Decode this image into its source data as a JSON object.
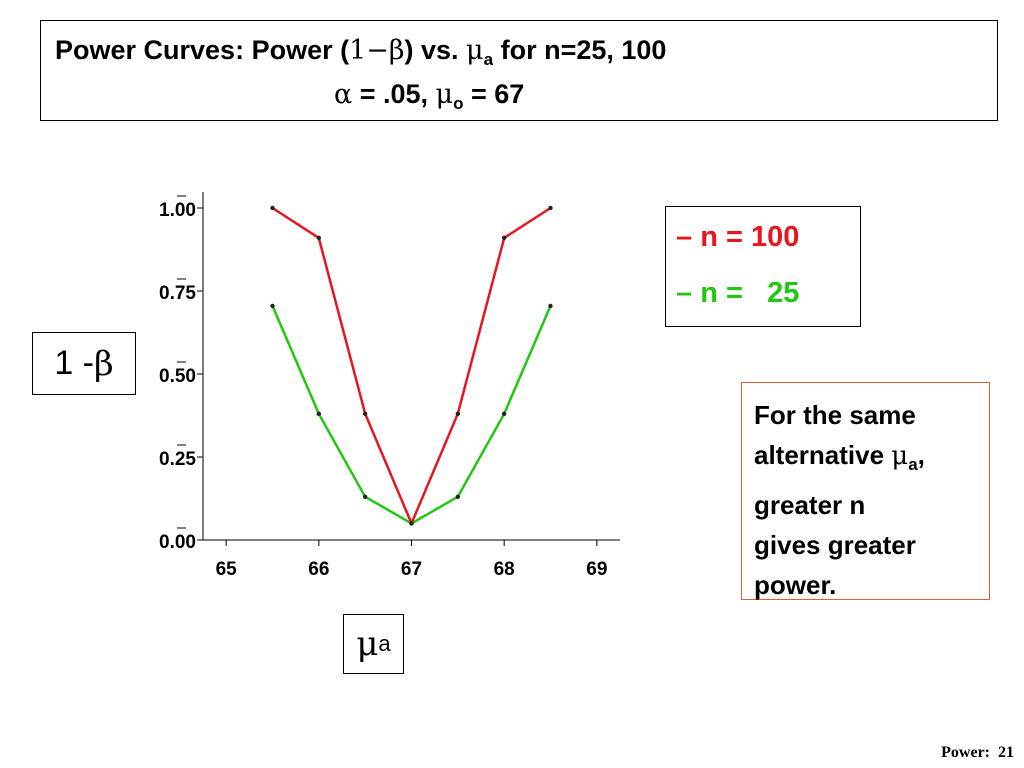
{
  "header": {
    "line1_prefix": "Power Curves:  Power (",
    "one_minus_beta": "1−β",
    "line1_mid": ") vs. ",
    "mu": "μ",
    "sub_a": "a",
    "line1_suffix": " for n=25, 100",
    "alpha": "α",
    "line2_mid": " = .05, ",
    "sub_o": "o",
    "line2_suffix": " = 67"
  },
  "y_axis_label": {
    "text": "1 - ",
    "beta": "β"
  },
  "x_axis_label": {
    "mu": "μ",
    "sub": "a"
  },
  "legend": {
    "entries": [
      {
        "dash": "–",
        "text": "n = 100",
        "color": "#e8141e"
      },
      {
        "dash": "–",
        "text": "n =   25",
        "color": "#20c80f"
      }
    ]
  },
  "note": {
    "line1": "For the same",
    "line2_prefix": "alternative ",
    "mu": "μ",
    "sub": "a",
    "line2_suffix": ",",
    "line3": "greater n",
    "line4": "gives greater",
    "line5": "power."
  },
  "footer": "Power:  21",
  "chart_data": {
    "type": "line",
    "xlim": [
      64.75,
      69.25
    ],
    "ylim": [
      0,
      1
    ],
    "x_ticks": [
      "65",
      "66",
      "67",
      "68",
      "69"
    ],
    "x_tick_values": [
      65,
      66,
      67,
      68,
      69
    ],
    "y_ticks": [
      "0.00",
      "0.25",
      "0.50",
      "0.75",
      "1.00"
    ],
    "y_tick_values": [
      0,
      0.25,
      0.5,
      0.75,
      1
    ],
    "grid": false,
    "series": [
      {
        "name": "n = 100",
        "color": "#e8141e",
        "x": [
          65.5,
          66,
          66.5,
          67,
          67.5,
          68,
          68.5
        ],
        "y": [
          1.0,
          0.91,
          0.38,
          0.05,
          0.38,
          0.91,
          1.0
        ]
      },
      {
        "name": "n =   25",
        "color": "#20c80f",
        "x": [
          65.5,
          66,
          66.5,
          67,
          67.5,
          68,
          68.5
        ],
        "y": [
          0.705,
          0.38,
          0.13,
          0.05,
          0.13,
          0.38,
          0.705
        ]
      }
    ]
  }
}
